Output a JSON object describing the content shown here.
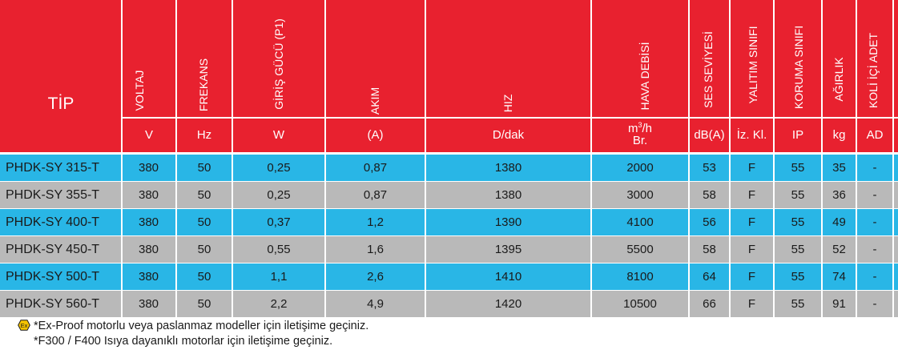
{
  "header": {
    "tip": "TİP",
    "columns": [
      {
        "label": "",
        "unit": ""
      },
      {
        "label": "VOLTAJ",
        "unit": "V"
      },
      {
        "label": "FREKANS",
        "unit": "Hz"
      },
      {
        "label": "GİRİŞ GÜCÜ (P1)",
        "unit": "W"
      },
      {
        "label": "AKIM",
        "unit": "(A)"
      },
      {
        "label": "HIZ",
        "unit": "D/dak"
      },
      {
        "label": "HAVA DEBİSİ",
        "unit_main": "m",
        "unit_sup": "3",
        "unit_rest": "/h",
        "unit_line2": "Br."
      },
      {
        "label": "SES SEVİYESİ",
        "unit": "dB(A)"
      },
      {
        "label": "YALITIM SINIFI",
        "unit": "İz. Kl."
      },
      {
        "label": "KORUMA SINIFI",
        "unit": "IP"
      },
      {
        "label": "AĞIRLIK",
        "unit": "kg"
      },
      {
        "label": "KOLİ İÇİ ADET",
        "unit": "AD"
      }
    ]
  },
  "rows": [
    {
      "model": "PHDK-SY 315-T",
      "voltage": "380",
      "freq": "50",
      "power": "0,25",
      "current": "0,87",
      "speed": "1380",
      "airflow": "2000",
      "noise": "53",
      "insulation": "F",
      "ip": "55",
      "weight": "35",
      "qty": "-"
    },
    {
      "model": "PHDK-SY 355-T",
      "voltage": "380",
      "freq": "50",
      "power": "0,25",
      "current": "0,87",
      "speed": "1380",
      "airflow": "3000",
      "noise": "58",
      "insulation": "F",
      "ip": "55",
      "weight": "36",
      "qty": "-"
    },
    {
      "model": "PHDK-SY 400-T",
      "voltage": "380",
      "freq": "50",
      "power": "0,37",
      "current": "1,2",
      "speed": "1390",
      "airflow": "4100",
      "noise": "56",
      "insulation": "F",
      "ip": "55",
      "weight": "49",
      "qty": "-"
    },
    {
      "model": "PHDK-SY 450-T",
      "voltage": "380",
      "freq": "50",
      "power": "0,55",
      "current": "1,6",
      "speed": "1395",
      "airflow": "5500",
      "noise": "58",
      "insulation": "F",
      "ip": "55",
      "weight": "52",
      "qty": "-"
    },
    {
      "model": "PHDK-SY 500-T",
      "voltage": "380",
      "freq": "50",
      "power": "1,1",
      "current": "2,6",
      "speed": "1410",
      "airflow": "8100",
      "noise": "64",
      "insulation": "F",
      "ip": "55",
      "weight": "74",
      "qty": "-"
    },
    {
      "model": "PHDK-SY 560-T",
      "voltage": "380",
      "freq": "50",
      "power": "2,2",
      "current": "4,9",
      "speed": "1420",
      "airflow": "10500",
      "noise": "66",
      "insulation": "F",
      "ip": "55",
      "weight": "91",
      "qty": "-"
    }
  ],
  "footer": {
    "ex_icon_text": "Ex",
    "note1": "*Ex-Proof motorlu veya paslanmaz modeller için iletişime geçiniz.",
    "note2": "*F300 / F400 Isıya dayanıklı motorlar için iletişime geçiniz."
  },
  "colors": {
    "header_red": "#e8212f",
    "row_blue": "#29b6e6",
    "row_gray": "#b9b9b9",
    "ex_yellow": "#f5c400"
  }
}
